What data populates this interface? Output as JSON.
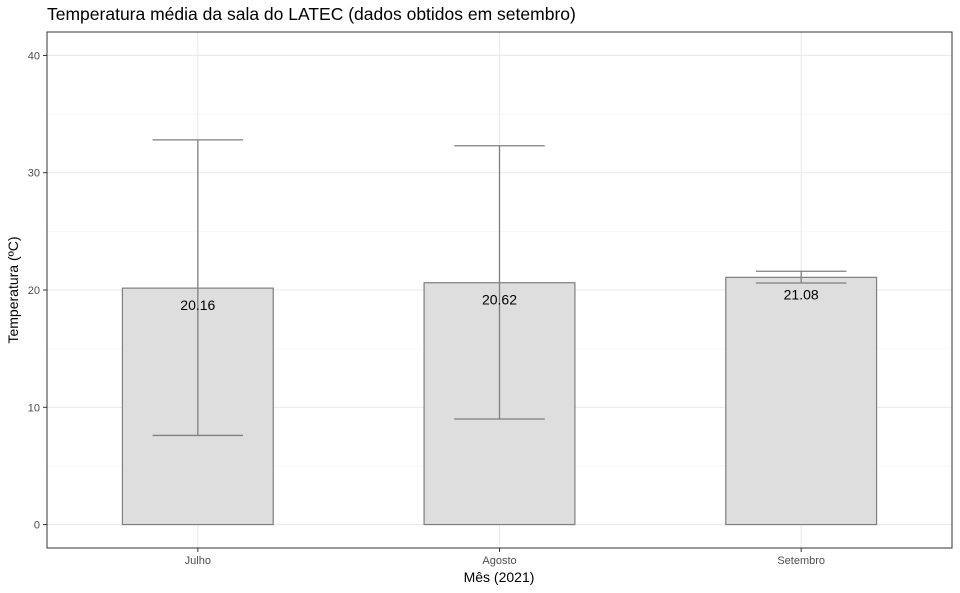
{
  "chart_data": {
    "type": "bar",
    "title": "Temperatura média da sala do LATEC (dados obtidos em setembro)",
    "xlabel": "Mês (2021)",
    "ylabel": "Temperatura (ºC)",
    "categories": [
      "Julho",
      "Agosto",
      "Setembro"
    ],
    "values": [
      20.16,
      20.62,
      21.08
    ],
    "value_labels": [
      "20.16",
      "20.62",
      "21.08"
    ],
    "error_bars": [
      {
        "low": 7.6,
        "high": 32.8
      },
      {
        "low": 9.0,
        "high": 32.3
      },
      {
        "low": 20.6,
        "high": 21.6
      }
    ],
    "ylim": [
      -2,
      42
    ],
    "yticks": [
      0,
      10,
      20,
      30,
      40
    ],
    "grid": true,
    "colors": {
      "bar_fill": "#dedede",
      "bar_stroke": "#7f7f7f"
    }
  }
}
